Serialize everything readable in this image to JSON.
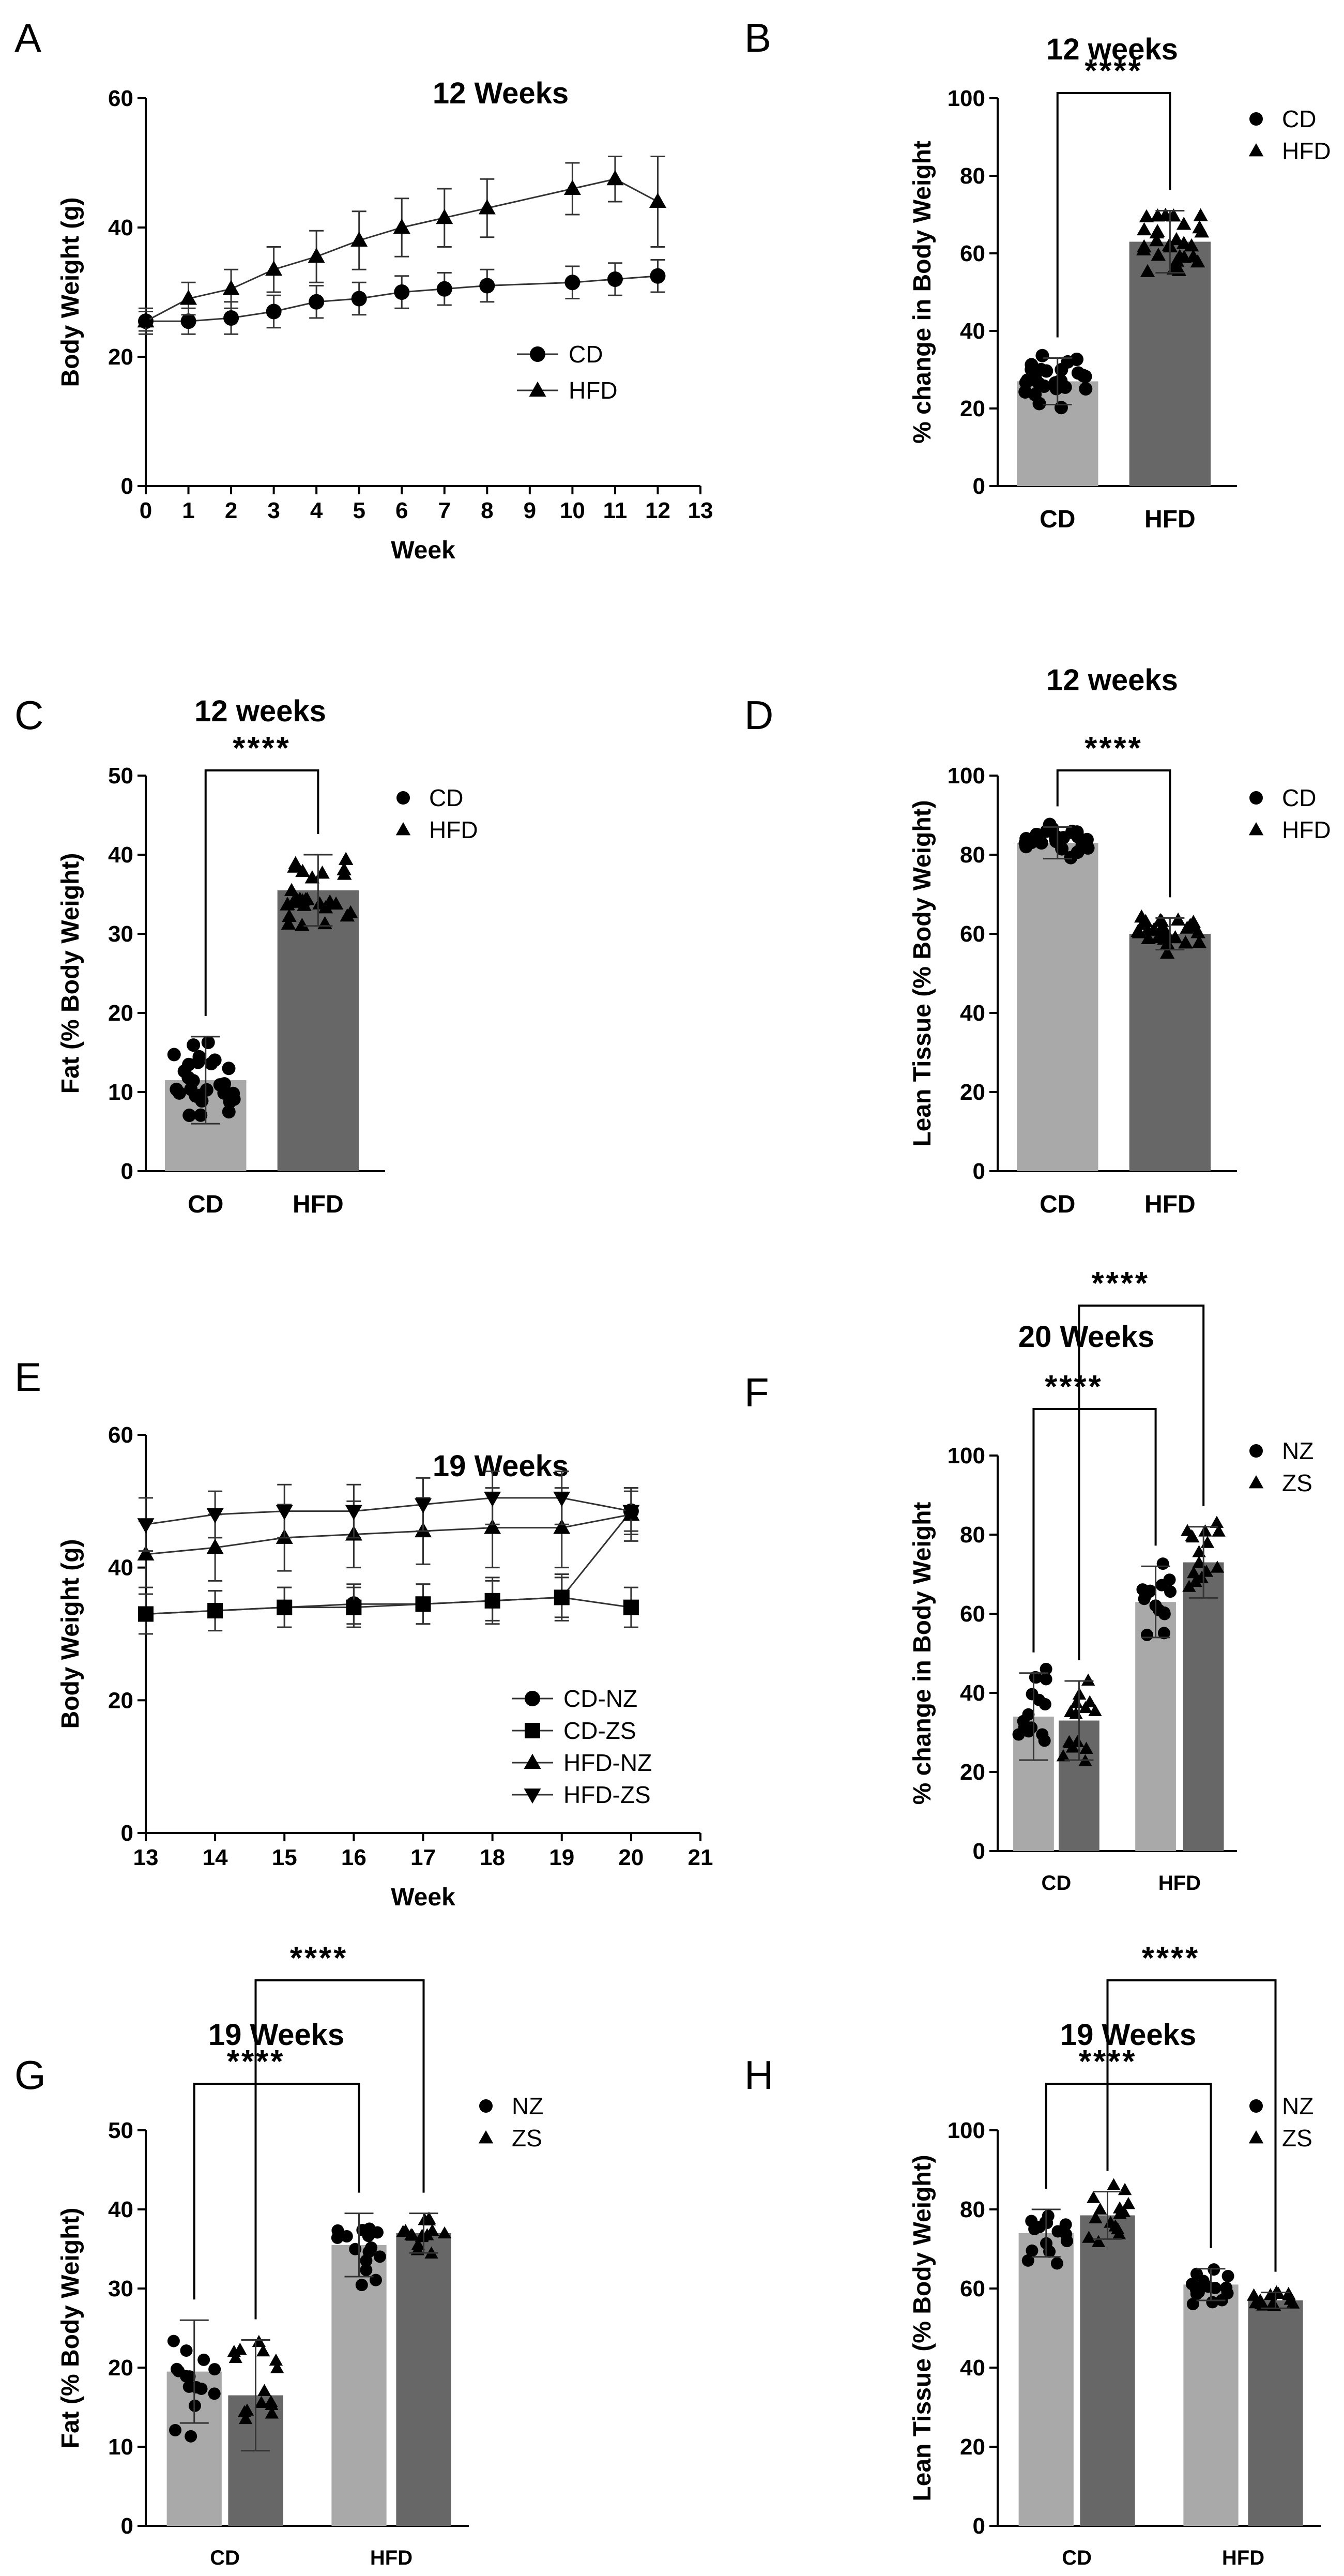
{
  "figure": {
    "panel_labels": [
      "A",
      "B",
      "C",
      "D",
      "E",
      "F",
      "G",
      "H"
    ]
  },
  "chart_data": [
    {
      "id": "A",
      "type": "line",
      "title": "12 Weeks",
      "xlabel": "Week",
      "ylabel": "Body Weight (g)",
      "xlim": [
        0,
        13
      ],
      "ylim": [
        0,
        60
      ],
      "xticks": [
        0,
        1,
        2,
        3,
        4,
        5,
        6,
        7,
        8,
        9,
        10,
        11,
        12,
        13
      ],
      "yticks": [
        0,
        20,
        40,
        60
      ],
      "legend": "center-right",
      "series": [
        {
          "name": "CD",
          "marker": "circle",
          "x": [
            0,
            1,
            2,
            3,
            4,
            5,
            6,
            7,
            8,
            10,
            11,
            12
          ],
          "y": [
            25.5,
            25.5,
            26,
            27,
            28.5,
            29,
            30,
            30.5,
            31,
            31.5,
            32,
            32.5
          ],
          "err": [
            1.5,
            2,
            2.5,
            2.5,
            2.5,
            2.5,
            2.5,
            2.5,
            2.5,
            2.5,
            2.5,
            2.5
          ]
        },
        {
          "name": "HFD",
          "marker": "triangle",
          "x": [
            0,
            1,
            2,
            3,
            4,
            5,
            6,
            7,
            8,
            10,
            11,
            12
          ],
          "y": [
            25.5,
            29,
            30.5,
            33.5,
            35.5,
            38,
            40,
            41.5,
            43,
            46,
            47.5,
            44
          ],
          "err": [
            2,
            2.5,
            3,
            3.5,
            4,
            4.5,
            4.5,
            4.5,
            4.5,
            4,
            3.5,
            7
          ]
        }
      ]
    },
    {
      "id": "B",
      "type": "bar",
      "title": "12 weeks",
      "ylabel": "% change in Body Weight",
      "categories": [
        "CD",
        "HFD"
      ],
      "ylim": [
        0,
        100
      ],
      "yticks": [
        0,
        20,
        40,
        60,
        80,
        100
      ],
      "legend": "top-right",
      "series": [
        {
          "name": "CD",
          "marker": "circle",
          "color": "#a9a9a9",
          "mean": 27,
          "sd": 6
        },
        {
          "name": "HFD",
          "marker": "triangle",
          "color": "#676767",
          "mean": 63,
          "sd": 8
        }
      ],
      "significance": [
        {
          "from": 0,
          "to": 1,
          "label": "****"
        }
      ]
    },
    {
      "id": "C",
      "type": "bar",
      "title": "12 weeks",
      "ylabel": "Fat (% Body Weight)",
      "categories": [
        "CD",
        "HFD"
      ],
      "ylim": [
        0,
        50
      ],
      "yticks": [
        0,
        10,
        20,
        30,
        40,
        50
      ],
      "legend": "top-right",
      "series": [
        {
          "name": "CD",
          "marker": "circle",
          "color": "#a9a9a9",
          "mean": 11.5,
          "sd": 5.5
        },
        {
          "name": "HFD",
          "marker": "triangle",
          "color": "#676767",
          "mean": 35.5,
          "sd": 4.5
        }
      ],
      "significance": [
        {
          "from": 0,
          "to": 1,
          "label": "****"
        }
      ]
    },
    {
      "id": "D",
      "type": "bar",
      "title": "12 weeks",
      "ylabel": "Lean Tissue (% Body Weight)",
      "categories": [
        "CD",
        "HFD"
      ],
      "ylim": [
        0,
        100
      ],
      "yticks": [
        0,
        20,
        40,
        60,
        80,
        100
      ],
      "legend": "top-right",
      "series": [
        {
          "name": "CD",
          "marker": "circle",
          "color": "#a9a9a9",
          "mean": 83,
          "sd": 4
        },
        {
          "name": "HFD",
          "marker": "triangle",
          "color": "#676767",
          "mean": 60,
          "sd": 4
        }
      ],
      "significance": [
        {
          "from": 0,
          "to": 1,
          "label": "****"
        }
      ]
    },
    {
      "id": "E",
      "type": "line",
      "title": "19 Weeks",
      "xlabel": "Week",
      "ylabel": "Body Weight (g)",
      "xlim": [
        13,
        21
      ],
      "ylim": [
        0,
        60
      ],
      "xticks": [
        13,
        14,
        15,
        16,
        17,
        18,
        19,
        20,
        21
      ],
      "yticks": [
        0,
        20,
        40,
        60
      ],
      "legend": "bottom-right",
      "series": [
        {
          "name": "CD-NZ",
          "marker": "circle",
          "x": [
            13,
            14,
            15,
            16,
            17,
            18,
            19,
            20
          ],
          "y": [
            33,
            33.5,
            34,
            34.5,
            34.5,
            35,
            35.5,
            48.5
          ],
          "err": [
            3,
            3,
            3,
            3,
            3,
            3,
            3,
            3
          ]
        },
        {
          "name": "CD-ZS",
          "marker": "square",
          "x": [
            13,
            14,
            15,
            16,
            17,
            18,
            19,
            20
          ],
          "y": [
            33,
            33.5,
            34,
            34,
            34.5,
            35,
            35.5,
            34
          ],
          "err": [
            3,
            3,
            3,
            3,
            3,
            3.5,
            3.5,
            3
          ]
        },
        {
          "name": "HFD-NZ",
          "marker": "triangle",
          "x": [
            13,
            14,
            15,
            16,
            17,
            18,
            19,
            20
          ],
          "y": [
            42,
            43,
            44.5,
            45,
            45.5,
            46,
            46,
            48
          ],
          "err": [
            5,
            5,
            5,
            5,
            5,
            6,
            6,
            4
          ]
        },
        {
          "name": "HFD-ZS",
          "marker": "triangle-down",
          "x": [
            13,
            14,
            15,
            16,
            17,
            18,
            19,
            20
          ],
          "y": [
            46.5,
            48,
            48.5,
            48.5,
            49.5,
            50.5,
            50.5,
            48.5
          ],
          "err": [
            4,
            3.5,
            4,
            4,
            4,
            4,
            4,
            3.5
          ]
        }
      ]
    },
    {
      "id": "F",
      "type": "bar",
      "title": "20 Weeks",
      "ylabel": "% change in Body Weight",
      "categories": [
        "CD",
        "HFD"
      ],
      "ylim": [
        0,
        100
      ],
      "yticks": [
        0,
        20,
        40,
        60,
        80,
        100
      ],
      "legend": "top-right",
      "series": [
        {
          "name": "NZ",
          "marker": "circle",
          "color": "#a9a9a9",
          "values": [
            34,
            63
          ],
          "sd": [
            11,
            9
          ]
        },
        {
          "name": "ZS",
          "marker": "triangle",
          "color": "#676767",
          "values": [
            33,
            73
          ],
          "sd": [
            10,
            9
          ]
        }
      ],
      "significance": [
        {
          "from": "CD-NZ",
          "to": "HFD-NZ",
          "label": "****"
        },
        {
          "from": "CD-ZS",
          "to": "HFD-ZS",
          "label": "****"
        }
      ]
    },
    {
      "id": "G",
      "type": "bar",
      "title": "19 Weeks",
      "ylabel": "Fat (% Body Weight)",
      "categories": [
        "CD",
        "HFD"
      ],
      "ylim": [
        0,
        50
      ],
      "yticks": [
        0,
        10,
        20,
        30,
        40,
        50
      ],
      "legend": "top-right",
      "series": [
        {
          "name": "NZ",
          "marker": "circle",
          "color": "#a9a9a9",
          "values": [
            19.5,
            35.5
          ],
          "sd": [
            6.5,
            4
          ]
        },
        {
          "name": "ZS",
          "marker": "triangle",
          "color": "#676767",
          "values": [
            16.5,
            37
          ],
          "sd": [
            7,
            2.5
          ]
        }
      ],
      "significance": [
        {
          "from": "CD-NZ",
          "to": "HFD-NZ",
          "label": "****"
        },
        {
          "from": "CD-ZS",
          "to": "HFD-ZS",
          "label": "****"
        }
      ]
    },
    {
      "id": "H",
      "type": "bar",
      "title": "19 Weeks",
      "ylabel": "Lean Tissue (% Body Weight)",
      "categories": [
        "CD",
        "HFD"
      ],
      "ylim": [
        0,
        100
      ],
      "yticks": [
        0,
        20,
        40,
        60,
        80,
        100
      ],
      "legend": "top-right",
      "series": [
        {
          "name": "NZ",
          "marker": "circle",
          "color": "#a9a9a9",
          "values": [
            74,
            61
          ],
          "sd": [
            6,
            4
          ]
        },
        {
          "name": "ZS",
          "marker": "triangle",
          "color": "#676767",
          "values": [
            78.5,
            57
          ],
          "sd": [
            6,
            2
          ]
        }
      ],
      "significance": [
        {
          "from": "CD-NZ",
          "to": "HFD-NZ",
          "label": "****"
        },
        {
          "from": "CD-ZS",
          "to": "HFD-ZS",
          "label": "****"
        }
      ]
    }
  ]
}
